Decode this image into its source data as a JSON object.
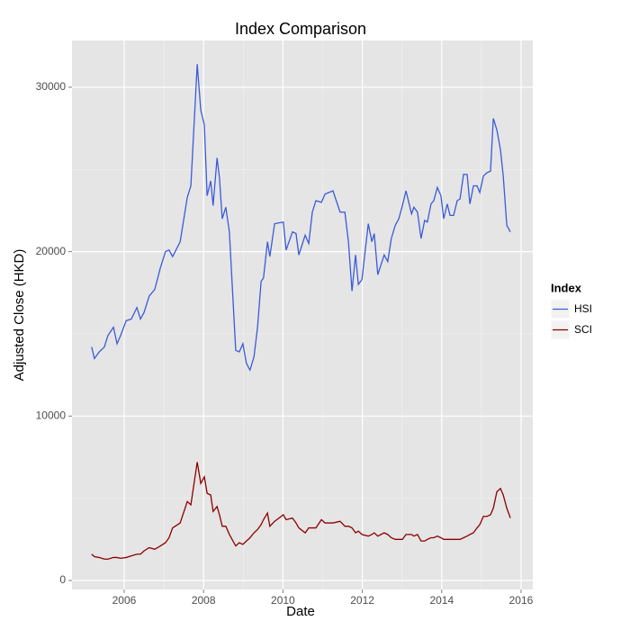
{
  "chart_data": {
    "type": "line",
    "title": "Index Comparison",
    "x_label": "Date",
    "y_label": "Adjusted Close (HKD)",
    "legend_title": "Index",
    "legend": "right",
    "grid": true,
    "x": [
      2005.18,
      2005.25,
      2005.37,
      2005.5,
      2005.59,
      2005.73,
      2005.82,
      2005.91,
      2006.05,
      2006.18,
      2006.32,
      2006.41,
      2006.5,
      2006.63,
      2006.77,
      2006.91,
      2007.04,
      2007.13,
      2007.22,
      2007.41,
      2007.59,
      2007.68,
      2007.84,
      2007.93,
      2008.02,
      2008.09,
      2008.18,
      2008.24,
      2008.34,
      2008.4,
      2008.47,
      2008.56,
      2008.65,
      2008.81,
      2008.9,
      2008.99,
      2009.08,
      2009.17,
      2009.27,
      2009.36,
      2009.45,
      2009.51,
      2009.61,
      2009.67,
      2009.79,
      2010.01,
      2010.08,
      2010.24,
      2010.33,
      2010.4,
      2010.56,
      2010.65,
      2010.74,
      2010.83,
      2010.97,
      2011.06,
      2011.26,
      2011.44,
      2011.56,
      2011.65,
      2011.74,
      2011.83,
      2011.9,
      2011.99,
      2012.15,
      2012.24,
      2012.3,
      2012.39,
      2012.55,
      2012.64,
      2012.73,
      2012.83,
      2012.92,
      2013.01,
      2013.1,
      2013.24,
      2013.3,
      2013.39,
      2013.48,
      2013.57,
      2013.64,
      2013.73,
      2013.8,
      2013.89,
      2013.98,
      2014.05,
      2014.14,
      2014.21,
      2014.3,
      2014.39,
      2014.46,
      2014.55,
      2014.64,
      2014.71,
      2014.8,
      2014.89,
      2014.96,
      2015.05,
      2015.14,
      2015.23,
      2015.3,
      2015.39,
      2015.48,
      2015.55,
      2015.64,
      2015.73
    ],
    "series": [
      {
        "name": "HSI",
        "color": "#3a5bd9",
        "values": [
          14200,
          13500,
          13900,
          14200,
          14900,
          15400,
          14400,
          14900,
          15800,
          15900,
          16600,
          15900,
          16300,
          17300,
          17700,
          19000,
          20000,
          20100,
          19700,
          20600,
          23300,
          24000,
          31400,
          28600,
          27700,
          23400,
          24300,
          22800,
          25700,
          24500,
          22000,
          22700,
          21200,
          14000,
          13900,
          14400,
          13200,
          12800,
          13600,
          15400,
          18200,
          18400,
          20600,
          19700,
          21700,
          21800,
          20100,
          21200,
          21100,
          19800,
          21000,
          20500,
          22400,
          23100,
          23000,
          23500,
          23700,
          22400,
          22400,
          20600,
          17600,
          19800,
          18000,
          18300,
          21700,
          20600,
          21100,
          18600,
          19800,
          19400,
          20800,
          21600,
          22000,
          22800,
          23700,
          22300,
          22700,
          22400,
          20800,
          21900,
          21800,
          22900,
          23100,
          23900,
          23400,
          22000,
          22900,
          22200,
          22200,
          23100,
          23200,
          24700,
          24700,
          22900,
          24000,
          24000,
          23600,
          24600,
          24800,
          24900,
          28100,
          27400,
          26200,
          24600,
          21600,
          21200
        ]
      },
      {
        "name": "SCI",
        "color": "#8b0000",
        "values": [
          1600,
          1450,
          1400,
          1300,
          1300,
          1400,
          1400,
          1350,
          1400,
          1500,
          1600,
          1600,
          1800,
          2000,
          1900,
          2100,
          2300,
          2600,
          3200,
          3500,
          4800,
          4600,
          7200,
          5900,
          6300,
          5300,
          5200,
          4200,
          4500,
          4000,
          3300,
          3300,
          2800,
          2100,
          2300,
          2200,
          2400,
          2600,
          2900,
          3100,
          3400,
          3700,
          4100,
          3300,
          3600,
          4000,
          3700,
          3800,
          3500,
          3200,
          2900,
          3200,
          3200,
          3200,
          3700,
          3500,
          3500,
          3600,
          3300,
          3300,
          3200,
          2900,
          3000,
          2800,
          2700,
          2800,
          2900,
          2700,
          2900,
          2800,
          2600,
          2500,
          2500,
          2500,
          2800,
          2800,
          2700,
          2800,
          2400,
          2400,
          2500,
          2600,
          2600,
          2700,
          2600,
          2500,
          2500,
          2500,
          2500,
          2500,
          2500,
          2600,
          2700,
          2800,
          2900,
          3200,
          3400,
          3900,
          3900,
          4000,
          4400,
          5400,
          5600,
          5200,
          4400,
          3800
        ]
      }
    ],
    "xlim": [
      2004.685,
      2016.295
    ],
    "xticks": [
      2006,
      2008,
      2010,
      2012,
      2014,
      2016
    ],
    "ylim": [
      -547,
      32840
    ],
    "yticks": [
      0,
      10000,
      20000,
      30000
    ]
  }
}
